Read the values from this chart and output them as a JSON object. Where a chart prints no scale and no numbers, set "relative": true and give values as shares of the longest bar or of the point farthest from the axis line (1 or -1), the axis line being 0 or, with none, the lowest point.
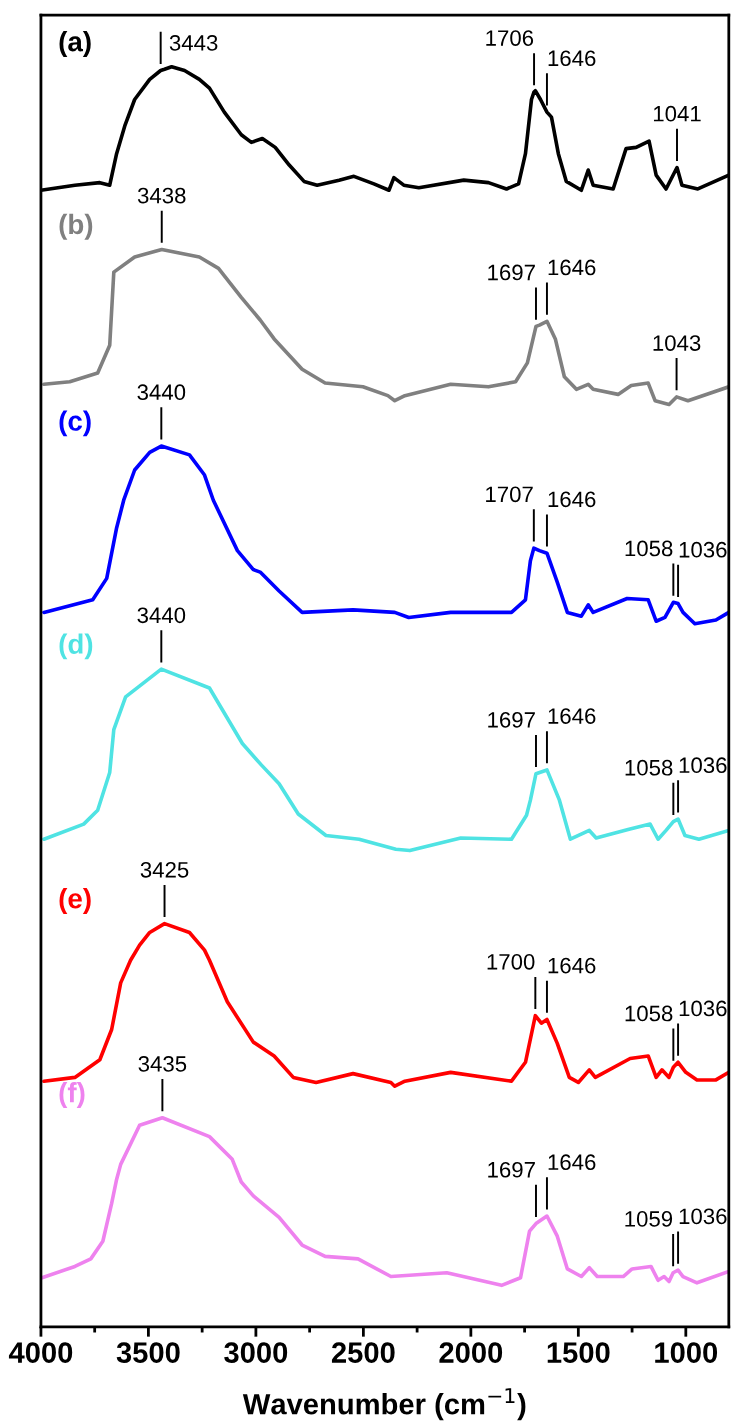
{
  "chart_data": {
    "type": "line",
    "relative": true,
    "xlabel": "Wavenumber (cm$^{−1}$)",
    "xlim": [
      4000,
      800
    ],
    "xticks": [
      4000,
      {
        "value": 3750,
        "label": null
      },
      3500,
      {
        "value": 3250,
        "label": null
      },
      3000,
      {
        "value": 2750,
        "label": null
      },
      2500,
      {
        "value": 2250,
        "label": null
      },
      2000,
      {
        "value": 1750,
        "label": null
      },
      1500,
      {
        "value": 1250,
        "label": null
      },
      1000
    ],
    "tick_labels": "x",
    "grid": false,
    "legend": false,
    "marker": "none",
    "line_style": "solid",
    "series": [
      {
        "name": "(a)",
        "color": "#000000",
        "x": [
          4000,
          3842,
          3726,
          3680,
          3648,
          3610,
          3564,
          3494,
          3443,
          3425,
          3392,
          3332,
          3263,
          3216,
          3147,
          3068,
          3021,
          2970,
          2910,
          2845,
          2776,
          2715,
          2613,
          2544,
          2451,
          2381,
          2358,
          2312,
          2242,
          2033,
          1918,
          1834,
          1778,
          1746,
          1718,
          1706,
          1700,
          1676,
          1646,
          1625,
          1593,
          1556,
          1486,
          1454,
          1431,
          1338,
          1278,
          1231,
          1171,
          1138,
          1092,
          1041,
          1018,
          944,
          800
        ],
        "values": [
          0.902,
          0.906,
          0.908,
          0.906,
          0.931,
          0.953,
          0.974,
          0.99,
          0.997,
          0.998,
          1.0,
          0.997,
          0.99,
          0.983,
          0.964,
          0.946,
          0.94,
          0.943,
          0.936,
          0.922,
          0.909,
          0.906,
          0.91,
          0.913,
          0.907,
          0.902,
          0.912,
          0.906,
          0.904,
          0.91,
          0.908,
          0.903,
          0.907,
          0.931,
          0.974,
          0.98,
          0.981,
          0.974,
          0.964,
          0.96,
          0.931,
          0.909,
          0.902,
          0.918,
          0.906,
          0.903,
          0.935,
          0.936,
          0.941,
          0.914,
          0.903,
          0.92,
          0.906,
          0.903,
          0.914
        ]
      },
      {
        "name": "(b)",
        "color": "#808080",
        "x": [
          3986,
          3866,
          3736,
          3680,
          3661,
          3564,
          3438,
          3263,
          3174,
          3068,
          2980,
          2915,
          2785,
          2678,
          2502,
          2386,
          2354,
          2307,
          2094,
          1918,
          1792,
          1737,
          1697,
          1681,
          1646,
          1607,
          1565,
          1509,
          1454,
          1431,
          1315,
          1254,
          1175,
          1143,
          1078,
          1043,
          990,
          800
        ],
        "values": [
          0.748,
          0.75,
          0.757,
          0.779,
          0.837,
          0.849,
          0.855,
          0.849,
          0.84,
          0.817,
          0.799,
          0.784,
          0.76,
          0.749,
          0.746,
          0.739,
          0.735,
          0.739,
          0.748,
          0.746,
          0.75,
          0.765,
          0.794,
          0.795,
          0.798,
          0.784,
          0.754,
          0.744,
          0.748,
          0.744,
          0.74,
          0.747,
          0.749,
          0.735,
          0.732,
          0.738,
          0.735,
          0.746
        ]
      },
      {
        "name": "(c)",
        "color": "#0000ff",
        "x": [
          3986,
          3759,
          3694,
          3648,
          3615,
          3564,
          3494,
          3440,
          3309,
          3239,
          3198,
          3086,
          3012,
          2980,
          2892,
          2785,
          2548,
          2354,
          2289,
          2094,
          1811,
          1746,
          1723,
          1707,
          1681,
          1646,
          1598,
          1551,
          1486,
          1454,
          1431,
          1273,
          1175,
          1138,
          1097,
          1058,
          1036,
          1013,
          958,
          860,
          800
        ],
        "values": [
          0.567,
          0.577,
          0.594,
          0.634,
          0.656,
          0.68,
          0.694,
          0.699,
          0.692,
          0.676,
          0.656,
          0.616,
          0.601,
          0.599,
          0.584,
          0.567,
          0.569,
          0.567,
          0.563,
          0.567,
          0.567,
          0.577,
          0.608,
          0.618,
          0.616,
          0.614,
          0.591,
          0.567,
          0.564,
          0.573,
          0.567,
          0.578,
          0.577,
          0.56,
          0.563,
          0.575,
          0.574,
          0.567,
          0.558,
          0.561,
          0.567
        ]
      },
      {
        "name": "(d)",
        "color": "#4fe3e3",
        "x": [
          3986,
          3801,
          3736,
          3680,
          3661,
          3606,
          3440,
          3216,
          3063,
          2975,
          2892,
          2803,
          2674,
          2520,
          2349,
          2284,
          2047,
          1811,
          1741,
          1723,
          1697,
          1646,
          1588,
          1537,
          1449,
          1417,
          1264,
          1166,
          1129,
          1092,
          1058,
          1036,
          1004,
          939,
          800
        ],
        "values": [
          0.387,
          0.399,
          0.41,
          0.44,
          0.474,
          0.5,
          0.522,
          0.507,
          0.463,
          0.446,
          0.431,
          0.407,
          0.39,
          0.387,
          0.379,
          0.378,
          0.388,
          0.387,
          0.406,
          0.418,
          0.439,
          0.442,
          0.418,
          0.387,
          0.394,
          0.388,
          0.395,
          0.399,
          0.387,
          0.394,
          0.401,
          0.403,
          0.39,
          0.387,
          0.394
        ]
      },
      {
        "name": "(e)",
        "color": "#ff0000",
        "x": [
          3986,
          3842,
          3726,
          3671,
          3629,
          3583,
          3541,
          3494,
          3425,
          3309,
          3239,
          3216,
          3133,
          3012,
          2915,
          2826,
          2720,
          2548,
          2372,
          2354,
          2307,
          2094,
          1811,
          1746,
          1700,
          1672,
          1646,
          1598,
          1542,
          1500,
          1449,
          1421,
          1259,
          1175,
          1138,
          1111,
          1078,
          1058,
          1036,
          1000,
          948,
          860,
          800
        ],
        "values": [
          0.195,
          0.198,
          0.212,
          0.236,
          0.273,
          0.291,
          0.303,
          0.313,
          0.32,
          0.313,
          0.299,
          0.291,
          0.258,
          0.226,
          0.215,
          0.198,
          0.194,
          0.201,
          0.194,
          0.191,
          0.195,
          0.202,
          0.195,
          0.21,
          0.247,
          0.241,
          0.244,
          0.225,
          0.198,
          0.194,
          0.204,
          0.198,
          0.213,
          0.215,
          0.198,
          0.204,
          0.198,
          0.206,
          0.21,
          0.202,
          0.196,
          0.196,
          0.202
        ]
      },
      {
        "name": "(f)",
        "color": "#ee82ee",
        "x": [
          3995,
          3842,
          3768,
          3712,
          3671,
          3648,
          3629,
          3541,
          3435,
          3216,
          3110,
          3068,
          3012,
          2892,
          2785,
          2678,
          2525,
          2372,
          2112,
          1857,
          1769,
          1727,
          1697,
          1646,
          1598,
          1551,
          1486,
          1449,
          1412,
          1291,
          1250,
          1162,
          1129,
          1101,
          1078,
          1059,
          1036,
          1013,
          948,
          800
        ],
        "values": [
          0.039,
          0.048,
          0.054,
          0.068,
          0.098,
          0.117,
          0.129,
          0.16,
          0.166,
          0.151,
          0.133,
          0.115,
          0.104,
          0.087,
          0.065,
          0.056,
          0.054,
          0.04,
          0.043,
          0.033,
          0.039,
          0.076,
          0.082,
          0.088,
          0.072,
          0.046,
          0.04,
          0.047,
          0.04,
          0.04,
          0.046,
          0.048,
          0.037,
          0.04,
          0.036,
          0.043,
          0.045,
          0.04,
          0.035,
          0.044
        ]
      }
    ],
    "annotations": [
      {
        "text": "3443",
        "x": 3443,
        "y": 0.997
      },
      {
        "text": "1706",
        "x": 1706,
        "y": 0.98
      },
      {
        "text": "1646",
        "x": 1646,
        "y": 0.964
      },
      {
        "text": "1041",
        "x": 1041,
        "y": 0.92
      },
      {
        "text": "3438",
        "x": 3438,
        "y": 0.855
      },
      {
        "text": "1697",
        "x": 1697,
        "y": 0.794
      },
      {
        "text": "1646",
        "x": 1646,
        "y": 0.798
      },
      {
        "text": "1043",
        "x": 1043,
        "y": 0.738
      },
      {
        "text": "3440",
        "x": 3440,
        "y": 0.699
      },
      {
        "text": "1707",
        "x": 1707,
        "y": 0.618
      },
      {
        "text": "1646",
        "x": 1646,
        "y": 0.614
      },
      {
        "text": "1058",
        "x": 1058,
        "y": 0.575
      },
      {
        "text": "1036",
        "x": 1036,
        "y": 0.574
      },
      {
        "text": "3440",
        "x": 3440,
        "y": 0.522
      },
      {
        "text": "1697",
        "x": 1697,
        "y": 0.439
      },
      {
        "text": "1646",
        "x": 1646,
        "y": 0.442
      },
      {
        "text": "1058",
        "x": 1058,
        "y": 0.401
      },
      {
        "text": "1036",
        "x": 1036,
        "y": 0.403
      },
      {
        "text": "3425",
        "x": 3425,
        "y": 0.32
      },
      {
        "text": "1700",
        "x": 1700,
        "y": 0.247
      },
      {
        "text": "1646",
        "x": 1646,
        "y": 0.244
      },
      {
        "text": "1058",
        "x": 1058,
        "y": 0.206
      },
      {
        "text": "1036",
        "x": 1036,
        "y": 0.21
      },
      {
        "text": "3435",
        "x": 3435,
        "y": 0.166
      },
      {
        "text": "1697",
        "x": 1697,
        "y": 0.082
      },
      {
        "text": "1646",
        "x": 1646,
        "y": 0.088
      },
      {
        "text": "1059",
        "x": 1059,
        "y": 0.043
      },
      {
        "text": "1036",
        "x": 1036,
        "y": 0.045
      }
    ]
  }
}
